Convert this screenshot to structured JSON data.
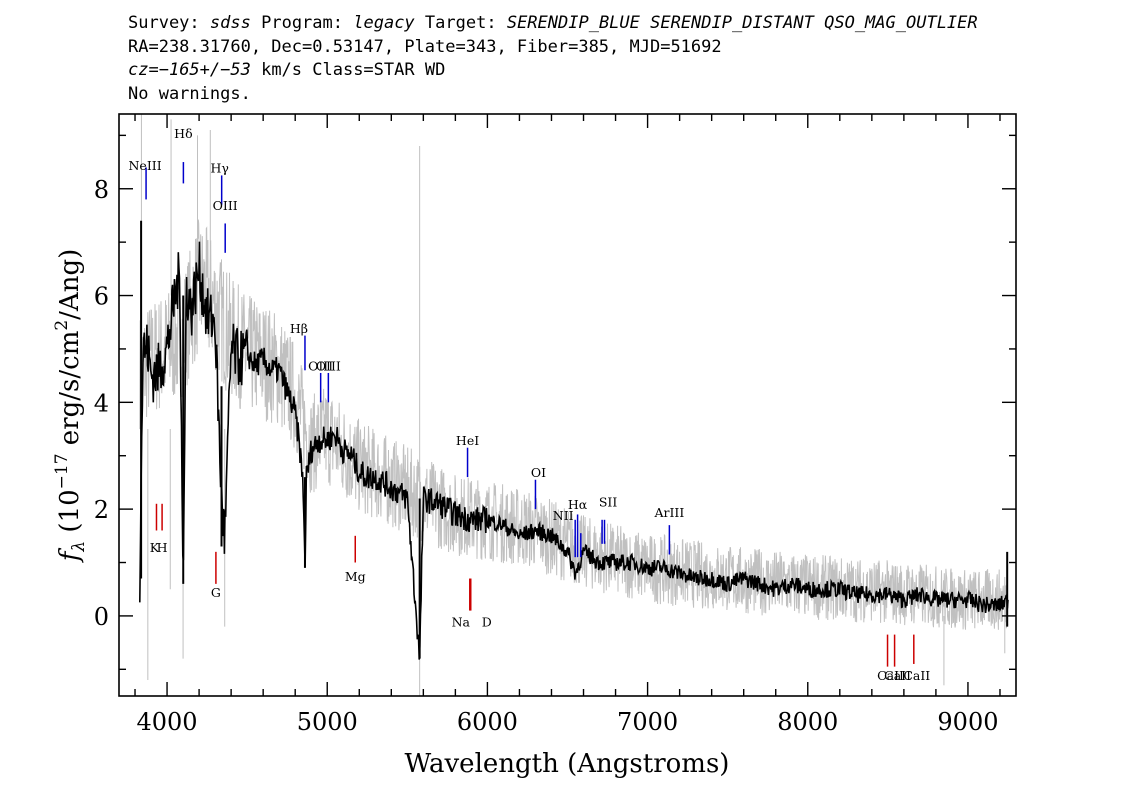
{
  "header": {
    "line1": {
      "survey_label": "Survey:",
      "survey": "sdss",
      "program_label": "Program:",
      "program": "legacy",
      "target_label": "Target:",
      "target": "SERENDIP_BLUE SERENDIP_DISTANT QSO_MAG_OUTLIER"
    },
    "line2": "RA=238.31760, Dec=0.53147, Plate=343, Fiber=385, MJD=51692",
    "line3": {
      "cz_label": "cz=",
      "cz_value": "−165+/−53",
      "cz_rest": " km/s Class=STAR WD"
    },
    "line4": "No warnings."
  },
  "chart_data": {
    "type": "line",
    "xlabel": "Wavelength (Angstroms)",
    "ylabel": {
      "prefix": "f",
      "sub": "λ",
      "unit_open": " (10",
      "exp1": "−17",
      "unit_mid": " erg/s/cm",
      "exp2": "2",
      "unit_close": "/Ang)"
    },
    "xlim": [
      3700,
      9300
    ],
    "ylim": [
      -1.5,
      9.4
    ],
    "xticks": [
      4000,
      5000,
      6000,
      7000,
      8000,
      9000
    ],
    "yticks": [
      0,
      2,
      4,
      6,
      8
    ],
    "colors": {
      "flux": "#000000",
      "error": "#c0c0c0",
      "emission": "#0000cc",
      "absorption": "#cc0000",
      "sky": "#c0c0c0"
    },
    "sky_line": 5577,
    "series": [
      {
        "kind": "smoothed flux",
        "x": [
          3830,
          3850,
          3880,
          3900,
          3950,
          4000,
          4050,
          4080,
          4101,
          4120,
          4150,
          4200,
          4250,
          4300,
          4330,
          4340,
          4360,
          4400,
          4450,
          4500,
          4550,
          4600,
          4650,
          4700,
          4750,
          4800,
          4830,
          4850,
          4861,
          4870,
          4900,
          4950,
          5000,
          5050,
          5100,
          5150,
          5200,
          5250,
          5300,
          5400,
          5500,
          5577,
          5600,
          5700,
          5800,
          5900,
          6000,
          6100,
          6200,
          6300,
          6400,
          6500,
          6550,
          6600,
          6700,
          6800,
          6900,
          7000,
          7100,
          7200,
          7300,
          7400,
          7500,
          7600,
          7700,
          7800,
          7900,
          8000,
          8100,
          8200,
          8300,
          8400,
          8500,
          8600,
          8700,
          8800,
          8900,
          9000,
          9100,
          9200,
          9250
        ],
        "y": [
          0.8,
          5.0,
          5.0,
          4.5,
          4.6,
          5.0,
          6.0,
          6.4,
          0.6,
          6.2,
          5.7,
          6.5,
          5.6,
          5.5,
          3.0,
          2.3,
          1.4,
          5.0,
          4.8,
          4.9,
          4.7,
          4.8,
          4.6,
          4.6,
          4.2,
          3.8,
          3.1,
          2.4,
          0.9,
          2.6,
          3.1,
          3.3,
          3.3,
          3.4,
          3.1,
          3.0,
          2.7,
          2.6,
          2.6,
          2.4,
          2.2,
          -0.8,
          2.2,
          2.1,
          1.9,
          1.8,
          1.8,
          1.7,
          1.5,
          1.6,
          1.5,
          1.2,
          0.8,
          1.2,
          1.0,
          1.0,
          1.0,
          0.9,
          0.9,
          0.8,
          0.7,
          0.7,
          0.6,
          0.7,
          0.6,
          0.5,
          0.6,
          0.5,
          0.5,
          0.5,
          0.4,
          0.4,
          0.4,
          0.3,
          0.4,
          0.3,
          0.3,
          0.3,
          0.2,
          0.2,
          0.3
        ]
      },
      {
        "kind": "raw flux (error envelope)",
        "x": [
          3830,
          3900,
          4000,
          4100,
          4200,
          4300,
          4400,
          4500,
          4600,
          4700,
          4800,
          4900,
          5000,
          5200,
          5400,
          5600,
          5800,
          6000,
          6300,
          6600,
          7000,
          7500,
          8000,
          8500,
          9000,
          9250
        ],
        "y": [
          4.6,
          4.8,
          5.0,
          5.3,
          6.2,
          5.8,
          5.2,
          4.9,
          4.8,
          4.6,
          4.1,
          3.2,
          3.4,
          2.8,
          2.5,
          2.2,
          1.9,
          1.8,
          1.6,
          1.2,
          0.9,
          0.7,
          0.55,
          0.45,
          0.3,
          0.3
        ]
      }
    ],
    "emission_lines": [
      {
        "label": "NeIII",
        "x": 3869,
        "y_top": 8.4,
        "y_bottom": 7.8,
        "label_y": 8.35
      },
      {
        "label": "Hδ",
        "x": 4102,
        "y_top": 8.5,
        "y_bottom": 8.1,
        "label_y": 8.95
      },
      {
        "label": "Hγ",
        "x": 4341,
        "y_top": 8.25,
        "y_bottom": 7.7,
        "label_y": 8.3
      },
      {
        "label": "OIII",
        "x": 4363,
        "y_top": 7.35,
        "y_bottom": 6.8,
        "label_y": 7.6
      },
      {
        "label": "Hβ",
        "x": 4861,
        "y_top": 5.25,
        "y_bottom": 4.6,
        "label_y": 5.3
      },
      {
        "label": "OIII",
        "x": 4959,
        "y_top": 4.55,
        "y_bottom": 4.0,
        "label_y": 4.6
      },
      {
        "label": "OIII",
        "x": 5007,
        "y_top": 4.55,
        "y_bottom": 4.0,
        "label_y": 4.6
      },
      {
        "label": "HeI",
        "x": 5876,
        "y_top": 3.15,
        "y_bottom": 2.6,
        "label_y": 3.2
      },
      {
        "label": "OI",
        "x": 6300,
        "y_top": 2.55,
        "y_bottom": 2.0,
        "label_y": 2.6
      },
      {
        "label": "NII",
        "x": 6548,
        "y_top": 1.8,
        "y_bottom": 1.1,
        "label_y": 1.8
      },
      {
        "label": "Hα",
        "x": 6563,
        "y_top": 1.9,
        "y_bottom": 1.1,
        "label_y": 2.0
      },
      {
        "label": "NII",
        "x": 6583,
        "y_top": 1.55,
        "y_bottom": 1.1,
        "label_y": 1.7
      },
      {
        "label": "SII",
        "x": 6716,
        "y_top": 1.8,
        "y_bottom": 1.35,
        "label_y": 2.05
      },
      {
        "label": "SII",
        "x": 6731,
        "y_top": 1.8,
        "y_bottom": 1.35,
        "label_y": 2.05
      },
      {
        "label": "ArIII",
        "x": 7136,
        "y_top": 1.7,
        "y_bottom": 1.15,
        "label_y": 1.85
      }
    ],
    "absorption_lines": [
      {
        "label": "K",
        "x": 3934,
        "y_top": 2.1,
        "y_bottom": 1.6,
        "label_y": 1.2
      },
      {
        "label": "H",
        "x": 3969,
        "y_top": 2.1,
        "y_bottom": 1.6,
        "label_y": 1.2
      },
      {
        "label": "G",
        "x": 4305,
        "y_top": 1.2,
        "y_bottom": 0.6,
        "label_y": 0.35
      },
      {
        "label": "Mg",
        "x": 5175,
        "y_top": 1.5,
        "y_bottom": 1.0,
        "label_y": 0.65
      },
      {
        "label": "Na",
        "x": 5890,
        "y_top": 0.7,
        "y_bottom": 0.1,
        "label_y": -0.2
      },
      {
        "label": "D",
        "x": 5896,
        "y_top": 0.7,
        "y_bottom": 0.1,
        "label_y": -0.2
      },
      {
        "label": "CaII",
        "x": 8498,
        "y_top": -0.35,
        "y_bottom": -0.95,
        "label_y": -1.2
      },
      {
        "label": "CaII",
        "x": 8542,
        "y_top": -0.35,
        "y_bottom": -0.95,
        "label_y": -1.2
      },
      {
        "label": "CaII",
        "x": 8662,
        "y_top": -0.35,
        "y_bottom": -0.9,
        "label_y": -1.2
      }
    ]
  }
}
